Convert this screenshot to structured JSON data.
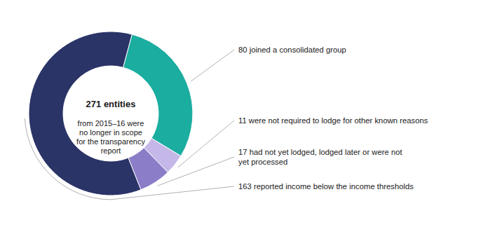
{
  "chart_data": {
    "type": "pie",
    "categories": [
      "80 joined a consolidated group",
      "11 were not required to lodge for other known reasons",
      "17 had not yet lodged, lodged later or were not\nyet processed",
      "163 reported income below the income thresholds"
    ],
    "values": [
      80,
      11,
      17,
      163
    ],
    "colors": [
      "#1aada0",
      "#c5b8e8",
      "#8b7dc8",
      "#2b3467"
    ],
    "annotations": [
      "271 entities",
      "from 2015–16 were\nno longer in scope\nfor the transparency\nreport"
    ]
  }
}
